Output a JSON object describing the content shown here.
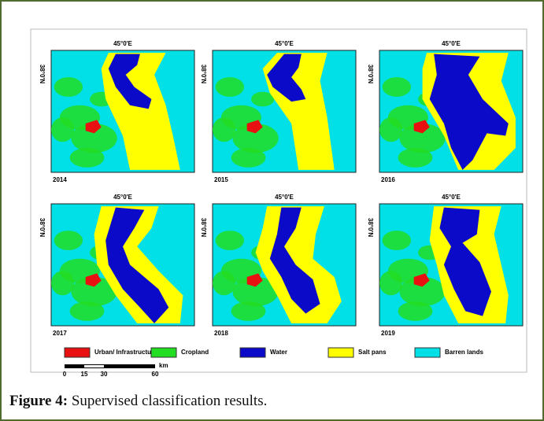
{
  "figure": {
    "panels": [
      {
        "year": "2014",
        "lon_label": "45°0'E",
        "lat_label": "38°0'N"
      },
      {
        "year": "2015",
        "lon_label": "45°0'E",
        "lat_label": "38°0'N"
      },
      {
        "year": "2016",
        "lon_label": "45°0'E",
        "lat_label": "38°0'N"
      },
      {
        "year": "2017",
        "lon_label": "45°0'E",
        "lat_label": "38°0'N"
      },
      {
        "year": "2018",
        "lon_label": "45°0'E",
        "lat_label": "38°0'N"
      },
      {
        "year": "2019",
        "lon_label": "45°0'E",
        "lat_label": "38°0'N"
      }
    ],
    "legend": [
      {
        "label": "Urban/ Infrastructure",
        "color": "#e81010"
      },
      {
        "label": "Cropland",
        "color": "#22dd22"
      },
      {
        "label": "Water",
        "color": "#0a0ac8"
      },
      {
        "label": "Salt pans",
        "color": "#ffff00"
      },
      {
        "label": "Barren lands",
        "color": "#00e0e6"
      }
    ],
    "scale": {
      "ticks": [
        "0",
        "15",
        "30",
        "60"
      ],
      "unit": "km"
    },
    "caption": {
      "label": "Figure 4:",
      "text": "Supervised classification results."
    }
  }
}
